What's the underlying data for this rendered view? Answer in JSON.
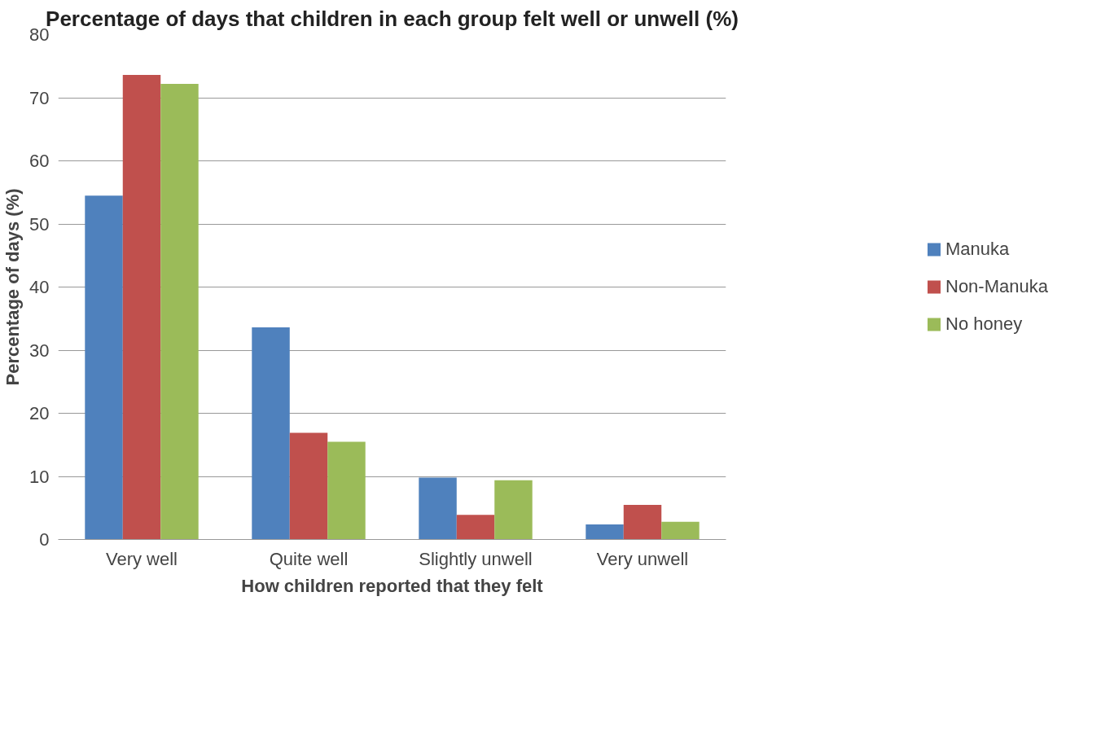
{
  "chart_data": {
    "type": "bar",
    "title": "Percentage of days that children in each group felt well or unwell (%)",
    "xlabel": "How children reported that they felt",
    "ylabel": "Percentage of days (%)",
    "categories": [
      "Very well",
      "Quite well",
      "Slightly unwell",
      "Very unwell"
    ],
    "series": [
      {
        "name": "Manuka",
        "color": "#4f81bd",
        "values": [
          54.5,
          33.6,
          9.8,
          2.4
        ]
      },
      {
        "name": "Non-Manuka",
        "color": "#c0504d",
        "values": [
          73.6,
          16.9,
          3.9,
          5.5
        ]
      },
      {
        "name": "No honey",
        "color": "#9bbb59",
        "values": [
          72.2,
          15.5,
          9.4,
          2.8
        ]
      }
    ],
    "ylim": [
      0,
      80
    ],
    "yticks": [
      0,
      10,
      20,
      30,
      40,
      50,
      60,
      70,
      80
    ],
    "grid": "y",
    "legend": "right"
  }
}
